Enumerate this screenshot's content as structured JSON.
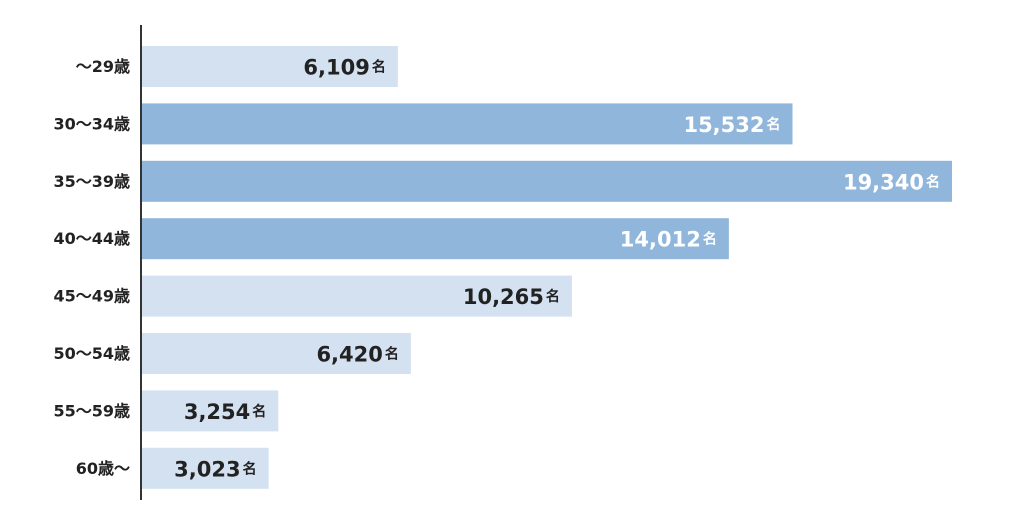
{
  "chart_data": {
    "type": "bar",
    "orientation": "horizontal",
    "categories": [
      "～29歳",
      "30～34歳",
      "35～39歳",
      "40～44歳",
      "45～49歳",
      "50～54歳",
      "55～59歳",
      "60歳～"
    ],
    "values": [
      6109,
      15532,
      19340,
      14012,
      10265,
      6420,
      3254,
      3023
    ],
    "value_labels": [
      "6,109",
      "15,532",
      "19,340",
      "14,012",
      "10,265",
      "6,420",
      "3,254",
      "3,023"
    ],
    "unit": "名",
    "highlighted": [
      false,
      true,
      true,
      true,
      false,
      false,
      false,
      false
    ],
    "xlim": [
      0,
      19340
    ],
    "grid": false,
    "colors": {
      "bar": "#d3e1f1",
      "bar_highlight": "#91b6dc",
      "label_on_bar": "#222222",
      "label_on_highlight": "#ffffff",
      "axis": "#333333"
    }
  }
}
